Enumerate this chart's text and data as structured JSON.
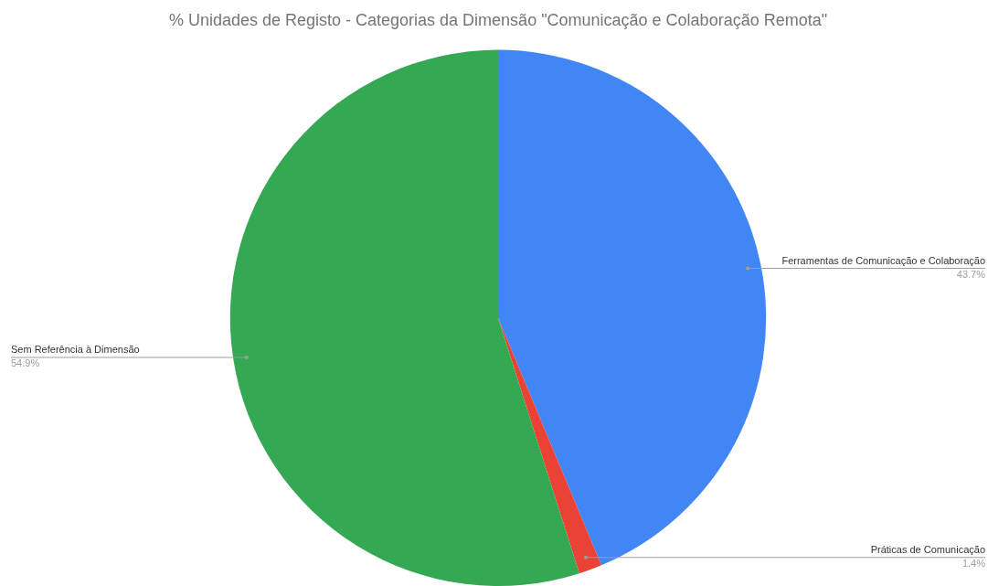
{
  "chart_data": {
    "type": "pie",
    "title": "% Unidades de Registo - Categorias da Dimensão \"Comunicação e Colaboração Remota\"",
    "categories": [
      "Ferramentas de Comunicação e Colaboração",
      "Práticas de Comunicação",
      "Sem Referência à Dimensão"
    ],
    "values": [
      43.7,
      1.4,
      54.9
    ],
    "colors": [
      "#4285f4",
      "#ea4335",
      "#34a853"
    ],
    "value_labels": [
      "43.7%",
      "1.4%",
      "54.9%"
    ]
  }
}
